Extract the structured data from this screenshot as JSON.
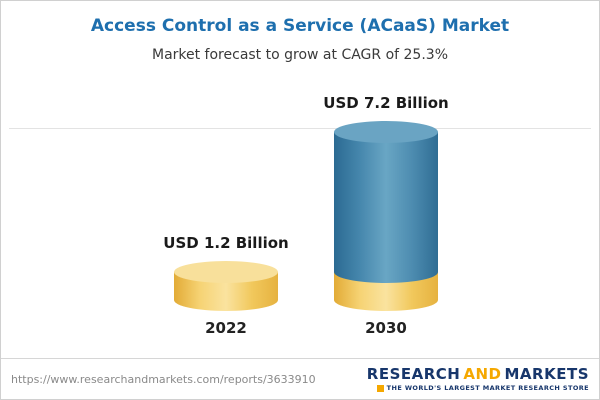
{
  "header": {
    "title": "Access Control as a Service (ACaaS) Market",
    "subtitle": "Market forecast to grow at CAGR of 25.3%"
  },
  "chart_data": {
    "type": "bar",
    "subtype": "3d-cylinder",
    "title": "Access Control as a Service (ACaaS) Market",
    "subtitle": "Market forecast to grow at CAGR of 25.3%",
    "categories": [
      "2022",
      "2030"
    ],
    "values": [
      1.2,
      7.2
    ],
    "unit": "USD Billion",
    "value_labels": [
      "USD 1.2 Billion",
      "USD 7.2 Billion"
    ],
    "cagr_percent": 25.3,
    "ylim": [
      0,
      7.2
    ],
    "grid": "single top gridline",
    "legend": "none",
    "notes": "2030 cylinder is blue with a yellow base segment equal to the 2022 value; 2022 cylinder is yellow",
    "colors": {
      "yellow_body": [
        "#e2ab36",
        "#f6d374",
        "#fae39f",
        "#f1c85c",
        "#e6b240"
      ],
      "yellow_top": "#f8e09b",
      "blue_body": [
        "#2b6a92",
        "#4687ad",
        "#69a6c4",
        "#4d8cb0",
        "#2f6d94"
      ],
      "blue_top": "#6aa4c3",
      "title_blue": "#1e6fae",
      "logo_navy": "#17366b",
      "logo_gold": "#f5a800"
    }
  },
  "footer": {
    "url": "https://www.researchandmarkets.com/reports/3633910",
    "logo": {
      "word1": "RESEARCH",
      "word2": "AND",
      "word3": "MARKETS",
      "tagline": "THE WORLD'S LARGEST MARKET RESEARCH STORE"
    }
  }
}
